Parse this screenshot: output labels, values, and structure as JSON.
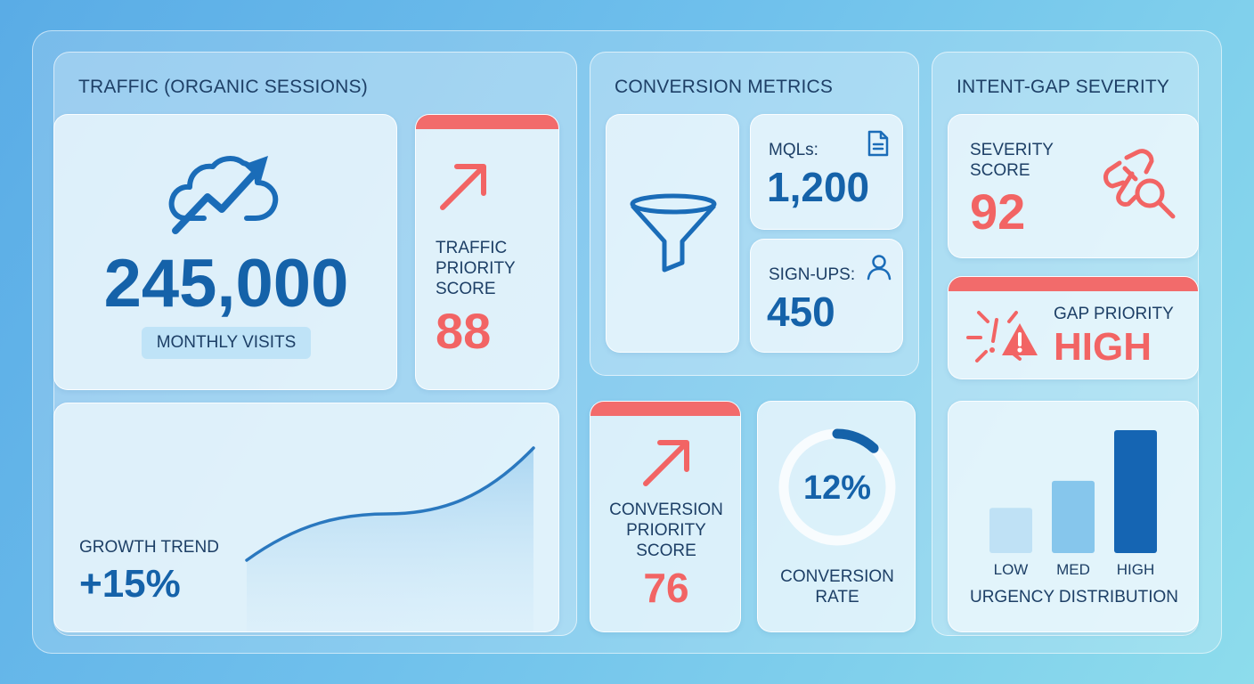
{
  "traffic": {
    "title": "TRAFFIC (ORGANIC SESSIONS)",
    "visits_value": "245,000",
    "visits_label": "MONTHLY VISITS",
    "priority_label_1": "TRAFFIC",
    "priority_label_2": "PRIORITY",
    "priority_label_3": "SCORE",
    "priority_value": "88",
    "growth_label": "GROWTH TREND",
    "growth_value": "+15%"
  },
  "conversion": {
    "title": "CONVERSION METRICS",
    "mqls_label": "MQLs:",
    "mqls_value": "1,200",
    "signups_label": "SIGN-UPS:",
    "signups_value": "450",
    "priority_label_1": "CONVERSION",
    "priority_label_2": "PRIORITY",
    "priority_label_3": "SCORE",
    "priority_value": "76",
    "rate_value": "12%",
    "rate_fraction": 0.12,
    "rate_label_1": "CONVERSION",
    "rate_label_2": "RATE"
  },
  "intent_gap": {
    "title": "INTENT-GAP SEVERITY",
    "severity_label_1": "SEVERITY",
    "severity_label_2": "SCORE",
    "severity_value": "92",
    "gap_label": "GAP PRIORITY",
    "gap_value": "HIGH",
    "distribution_title": "URGENCY DISTRIBUTION"
  },
  "chart_data": {
    "type": "bar",
    "categories": [
      "LOW",
      "MED",
      "HIGH"
    ],
    "values": [
      25,
      40,
      68
    ],
    "colors": [
      "#bfe1f5",
      "#86c6ec",
      "#1565b3"
    ],
    "title": "URGENCY DISTRIBUTION",
    "ylim": [
      0,
      70
    ]
  },
  "icons": {
    "traffic": "cloud-trend-icon",
    "priority": "arrow-up-right-icon",
    "funnel": "funnel-icon",
    "document": "document-icon",
    "user": "user-icon",
    "broken_link": "broken-link-search-icon",
    "alert": "alert-burst-icon"
  },
  "colors": {
    "primary_blue": "#1562a9",
    "accent_red": "#f26464",
    "text_dark": "#1d3f66"
  }
}
